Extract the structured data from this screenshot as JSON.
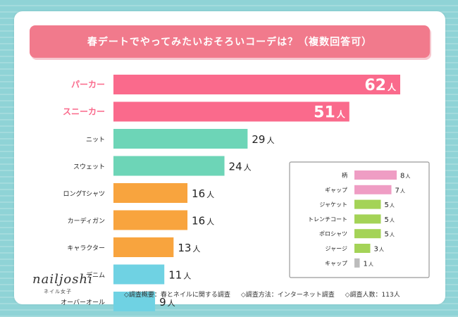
{
  "title": "春デートでやってみたいおそろいコーデは？（複数回答可）",
  "unit": "人",
  "brand": {
    "logo": "nailjoshi",
    "sub": "ネイル女子"
  },
  "footnotes": [
    "◇調査概要：春とネイルに関する調査",
    "◇調査方法：インターネット調査",
    "◇調査人数：113人"
  ],
  "colors": {
    "pink": "#fa6a8c",
    "teal": "#6dd5b7",
    "orange": "#f8a43e",
    "cyan": "#6fd2e3",
    "light_pink": "#ef9dc4",
    "green": "#a4d357",
    "gray": "#bcbcbc",
    "title_bg": "#f17a8c"
  },
  "chart_data": [
    {
      "type": "bar",
      "orientation": "horizontal",
      "categories": [
        "パーカー",
        "スニーカー",
        "ニット",
        "スウェット",
        "ロングTシャツ",
        "カーディガン",
        "キャラクター",
        "デニム",
        "オーバーオール"
      ],
      "values": [
        62,
        51,
        29,
        24,
        16,
        16,
        13,
        11,
        9
      ],
      "bar_colors": [
        "pink",
        "pink",
        "teal",
        "teal",
        "orange",
        "orange",
        "orange",
        "cyan",
        "cyan"
      ],
      "xlim": [
        0,
        62
      ]
    },
    {
      "type": "bar",
      "orientation": "horizontal",
      "categories": [
        "柄",
        "ギャップ",
        "ジャケット",
        "トレンチコート",
        "ポロシャツ",
        "ジャージ",
        "キャップ"
      ],
      "values": [
        8,
        7,
        5,
        5,
        5,
        3,
        1
      ],
      "bar_colors": [
        "light_pink",
        "light_pink",
        "green",
        "green",
        "green",
        "green",
        "gray"
      ],
      "xlim": [
        0,
        8
      ]
    }
  ]
}
